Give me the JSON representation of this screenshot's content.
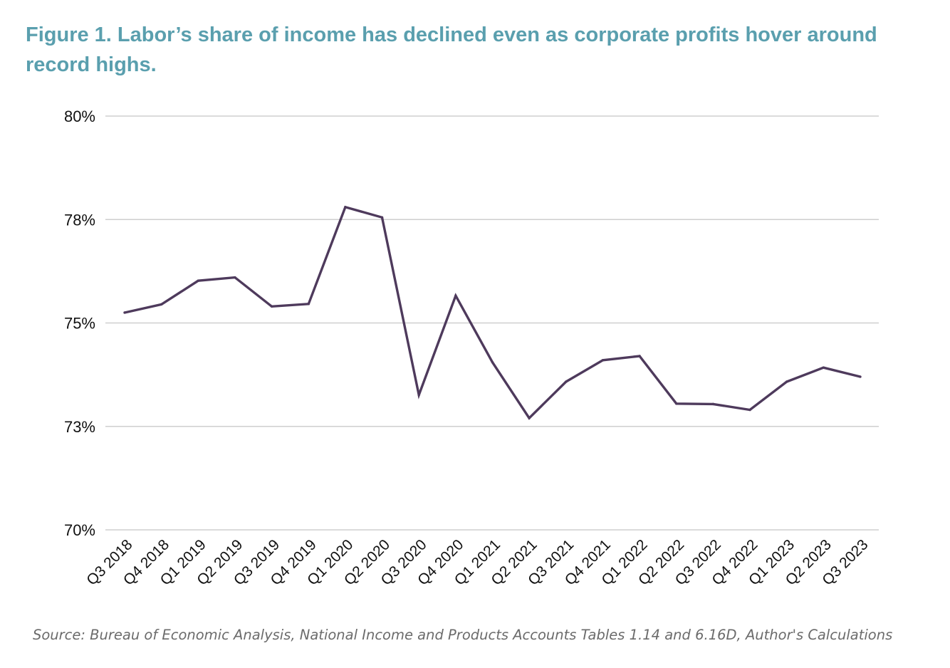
{
  "title": "Figure 1. Labor’s share of income has declined even as corporate profits hover around record highs.",
  "source": "Source: Bureau of Economic Analysis, National Income and Products Accounts Tables 1.14 and 6.16D, Author's Calculations",
  "colors": {
    "title": "#5a9fae",
    "line": "#4e3a5c",
    "grid": "#cfcfcf",
    "source": "#6b6b6b"
  },
  "chart_data": {
    "type": "line",
    "title": "Figure 1. Labor’s share of income has declined even as corporate profits hover around record highs.",
    "xlabel": "",
    "ylabel": "",
    "grid": true,
    "legend": "none",
    "ylim": [
      70,
      80
    ],
    "y_ticks": [
      {
        "value": 80,
        "label": "80%"
      },
      {
        "value": 77.5,
        "label": "78%"
      },
      {
        "value": 75,
        "label": "75%"
      },
      {
        "value": 72.5,
        "label": "73%"
      },
      {
        "value": 70,
        "label": "70%"
      }
    ],
    "categories": [
      "Q3 2018",
      "Q4 2018",
      "Q1 2019",
      "Q2 2019",
      "Q3 2019",
      "Q4 2019",
      "Q1 2020",
      "Q2 2020",
      "Q3 2020",
      "Q4 2020",
      "Q1 2021",
      "Q2 2021",
      "Q3 2021",
      "Q4 2021",
      "Q1 2022",
      "Q2 2022",
      "Q3 2022",
      "Q4 2022",
      "Q1 2023",
      "Q2 2023",
      "Q3 2023"
    ],
    "series": [
      {
        "values": [
          75.25,
          75.45,
          76.02,
          76.1,
          75.4,
          75.46,
          77.8,
          77.55,
          73.26,
          75.66,
          74.05,
          72.7,
          73.58,
          74.1,
          74.2,
          73.05,
          73.04,
          72.9,
          73.58,
          73.92,
          73.7
        ]
      }
    ]
  }
}
